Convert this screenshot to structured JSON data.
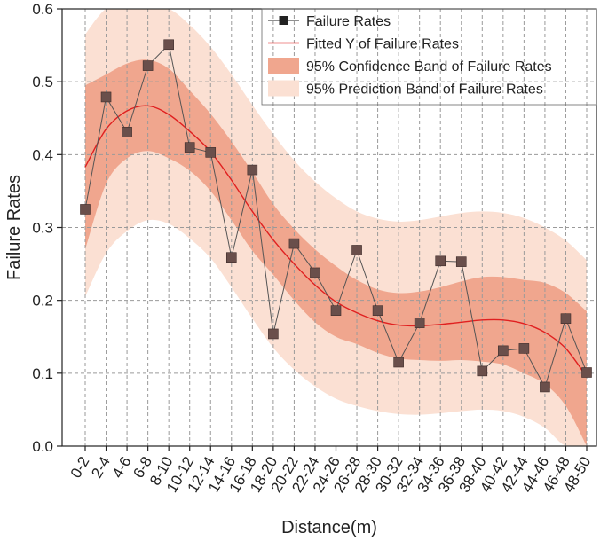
{
  "chart_data": {
    "type": "line",
    "xlabel": "Distance(m)",
    "ylabel": "Failure Rates",
    "ylim": [
      0,
      0.6
    ],
    "yticks": [
      "0.0",
      "0.1",
      "0.2",
      "0.3",
      "0.4",
      "0.5",
      "0.6"
    ],
    "categories": [
      "0-2",
      "2-4",
      "4-6",
      "6-8",
      "8-10",
      "10-12",
      "12-14",
      "14-16",
      "16-18",
      "18-20",
      "20-22",
      "22-24",
      "24-26",
      "26-28",
      "28-30",
      "30-32",
      "32-34",
      "34-36",
      "36-38",
      "38-40",
      "40-42",
      "42-44",
      "44-46",
      "46-48",
      "48-50"
    ],
    "grid": true,
    "legend_position": "top-right",
    "series": [
      {
        "name": "Failure Rates",
        "kind": "line+markers",
        "values": [
          0.325,
          0.479,
          0.431,
          0.522,
          0.551,
          0.41,
          0.403,
          0.259,
          0.379,
          0.154,
          0.278,
          0.238,
          0.186,
          0.269,
          0.186,
          0.115,
          0.169,
          0.254,
          0.253,
          0.103,
          0.131,
          0.134,
          0.081,
          0.175,
          0.101
        ]
      },
      {
        "name": "Fitted Y of Failure Rates",
        "kind": "fit-line",
        "values": [
          0.383,
          0.435,
          0.46,
          0.467,
          0.455,
          0.432,
          0.404,
          0.365,
          0.322,
          0.283,
          0.25,
          0.221,
          0.198,
          0.183,
          0.172,
          0.166,
          0.165,
          0.167,
          0.17,
          0.173,
          0.173,
          0.168,
          0.156,
          0.134,
          0.095
        ]
      },
      {
        "name": "95% Confidence Band of Failure Rates",
        "kind": "band",
        "lower": [
          0.27,
          0.36,
          0.395,
          0.405,
          0.395,
          0.378,
          0.35,
          0.31,
          0.268,
          0.235,
          0.2,
          0.17,
          0.15,
          0.14,
          0.128,
          0.12,
          0.118,
          0.117,
          0.118,
          0.116,
          0.112,
          0.1,
          0.085,
          0.055,
          0.0
        ],
        "upper": [
          0.495,
          0.51,
          0.525,
          0.53,
          0.518,
          0.488,
          0.456,
          0.418,
          0.376,
          0.332,
          0.298,
          0.27,
          0.247,
          0.228,
          0.215,
          0.21,
          0.212,
          0.218,
          0.226,
          0.232,
          0.232,
          0.228,
          0.224,
          0.21,
          0.185
        ]
      },
      {
        "name": "95% Prediction Band of Failure Rates",
        "kind": "band",
        "lower": [
          0.205,
          0.265,
          0.295,
          0.31,
          0.305,
          0.285,
          0.258,
          0.218,
          0.175,
          0.135,
          0.105,
          0.082,
          0.065,
          0.055,
          0.048,
          0.044,
          0.043,
          0.045,
          0.048,
          0.05,
          0.048,
          0.04,
          0.025,
          0.0,
          0.0
        ],
        "upper": [
          0.565,
          0.605,
          0.625,
          0.625,
          0.61,
          0.578,
          0.548,
          0.51,
          0.468,
          0.428,
          0.392,
          0.363,
          0.34,
          0.322,
          0.312,
          0.308,
          0.31,
          0.315,
          0.32,
          0.322,
          0.32,
          0.313,
          0.3,
          0.282,
          0.255
        ]
      }
    ],
    "colors": {
      "data_line": "#555555",
      "marker_fill": "#6a4f4b",
      "fit_line": "#e02020",
      "confidence_band": "#f0a68e",
      "prediction_band": "#fbe0d3",
      "grid": "#9a9a9a"
    }
  }
}
